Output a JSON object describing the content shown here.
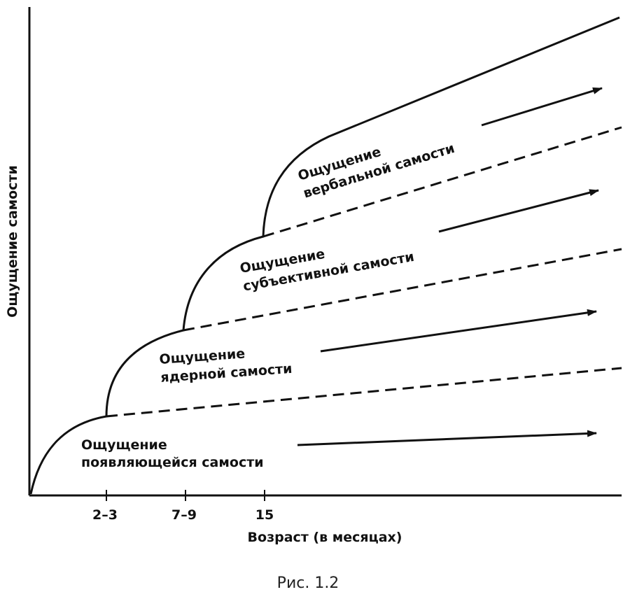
{
  "axes": {
    "y_label": "Ощущение самости",
    "x_label": "Возраст (в месяцах)",
    "ticks": [
      "2–3",
      "7–9",
      "15"
    ]
  },
  "stages": [
    {
      "line1": "Ощущение",
      "line2": "появляющейся самости"
    },
    {
      "line1": "Ощущение",
      "line2": "ядерной самости"
    },
    {
      "line1": "Ощущение",
      "line2": "субъективной самости"
    },
    {
      "line1": "Ощущение",
      "line2": "вербальной самости"
    }
  ],
  "caption": "Рис. 1.2"
}
